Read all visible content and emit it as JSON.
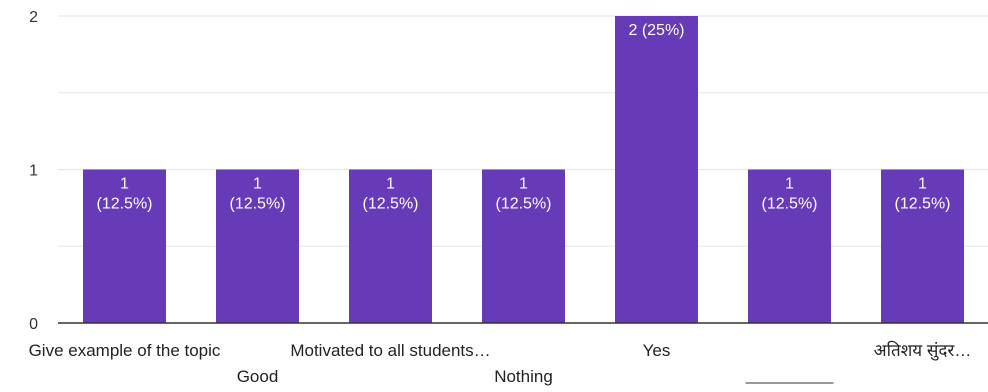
{
  "chart_data": {
    "type": "bar",
    "categories": [
      "Give example of the topic",
      "Good",
      "Motivated to all students…",
      "Nothing",
      "Yes",
      "________",
      "अतिशय सुंदर…"
    ],
    "values": [
      1,
      1,
      1,
      1,
      2,
      1,
      1
    ],
    "data_labels": [
      [
        "1",
        "(12.5%)"
      ],
      [
        "1",
        "(12.5%)"
      ],
      [
        "1",
        "(12.5%)"
      ],
      [
        "1",
        "(12.5%)"
      ],
      [
        "2 (25%)"
      ],
      [
        "1",
        "(12.5%)"
      ],
      [
        "1",
        "(12.5%)"
      ]
    ],
    "ylim": [
      0,
      2
    ],
    "yticks": [
      "0",
      "1",
      "2"
    ],
    "grid": true,
    "bar_color": "#673ab7",
    "grid_color": "#e6e6e6",
    "axis_color": "#333333"
  }
}
